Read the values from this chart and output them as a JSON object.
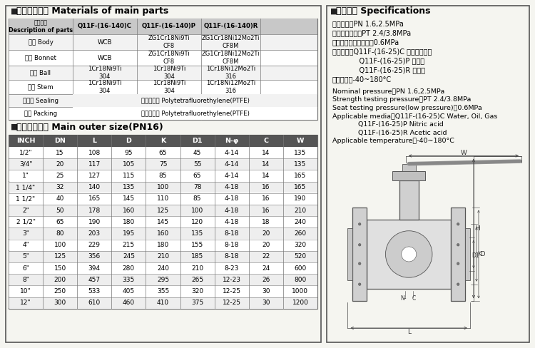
{
  "bg_color": "#f5f5f0",
  "specs_chinese": [
    "公称压力：PN 1.6,2.5MPa",
    "强度试验压力：PT 2.4/3.8MPa",
    "低压气密封试验压力：0.6MPa",
    "适用介质：Q11F-(16-25)C 水、油品、气",
    "            Q11F-(16-25)P 础酸类",
    "            Q11F-(16-25)R 醒酸类",
    "适用温度：-40~180°C"
  ],
  "specs_english": [
    "Nominal pressure：PN 1.6,2.5MPa",
    "Strength testing pressure：PT 2.4/3.8MPa",
    "Seat testing pressure(low pressure)：0.6MPa",
    "Applicable media：Q11F-(16-25)C Water, Oil, Gas",
    "            Q11F-(16-25)P Nitric acid",
    "            Q11F-(16-25)R Acetic acid",
    "Applicable temperature：-40~180°C"
  ],
  "materials_col0_header": "零件名称\nDescription of parts",
  "materials_headers": [
    "Q11F-(16-140)C",
    "Q11F-(16-140)P",
    "Q11F-(16-140)R"
  ],
  "materials_rows": [
    [
      "阀体 Body",
      "WCB",
      "ZG1Cr18Ni9Ti\nCF8",
      "ZG1Cr18Ni12Mo2Ti\nCF8M"
    ],
    [
      "阀盖 Bonnet",
      "WCB",
      "ZG1Cr18Ni9Ti\nCF8",
      "ZG1Cr18Ni12Mo2Ti\nCF8M"
    ],
    [
      "球体 Ball",
      "1Cr18Ni9Ti\n304",
      "1Cr18Ni9Ti\n304",
      "1Cr18Ni12Mo2Ti\n316"
    ],
    [
      "阀杆 Stem",
      "1Cr18Ni9Ti\n304",
      "1Cr18Ni9Ti\n304",
      "1Cr18Ni12Mo2Ti\n316"
    ],
    [
      "密封圈 Sealing",
      "聚四氟乙烯 Polytetrafluorethylene(PTFE)",
      "",
      ""
    ],
    [
      "填料 Packing",
      "聚四氟乙烯 Polytetrafluorethylene(PTFE)",
      "",
      ""
    ]
  ],
  "size_headers": [
    "INCH",
    "DN",
    "L",
    "D",
    "K",
    "D1",
    "N-φ",
    "C",
    "W"
  ],
  "size_rows": [
    [
      "1/2\"",
      "15",
      "108",
      "95",
      "65",
      "45",
      "4-14",
      "14",
      "135"
    ],
    [
      "3/4\"",
      "20",
      "117",
      "105",
      "75",
      "55",
      "4-14",
      "14",
      "135"
    ],
    [
      "1\"",
      "25",
      "127",
      "115",
      "85",
      "65",
      "4-14",
      "14",
      "165"
    ],
    [
      "1 1/4\"",
      "32",
      "140",
      "135",
      "100",
      "78",
      "4-18",
      "16",
      "165"
    ],
    [
      "1 1/2\"",
      "40",
      "165",
      "145",
      "110",
      "85",
      "4-18",
      "16",
      "190"
    ],
    [
      "2\"",
      "50",
      "178",
      "160",
      "125",
      "100",
      "4-18",
      "16",
      "210"
    ],
    [
      "2 1/2\"",
      "65",
      "190",
      "180",
      "145",
      "120",
      "4-18",
      "18",
      "240"
    ],
    [
      "3\"",
      "80",
      "203",
      "195",
      "160",
      "135",
      "8-18",
      "20",
      "260"
    ],
    [
      "4\"",
      "100",
      "229",
      "215",
      "180",
      "155",
      "8-18",
      "20",
      "320"
    ],
    [
      "5\"",
      "125",
      "356",
      "245",
      "210",
      "185",
      "8-18",
      "22",
      "520"
    ],
    [
      "6\"",
      "150",
      "394",
      "280",
      "240",
      "210",
      "8-23",
      "24",
      "600"
    ],
    [
      "8\"",
      "200",
      "457",
      "335",
      "295",
      "265",
      "12-23",
      "26",
      "800"
    ],
    [
      "10\"",
      "250",
      "533",
      "405",
      "355",
      "320",
      "12-25",
      "30",
      "1000"
    ],
    [
      "12\"",
      "300",
      "610",
      "460",
      "410",
      "375",
      "12-25",
      "30",
      "1200"
    ]
  ]
}
